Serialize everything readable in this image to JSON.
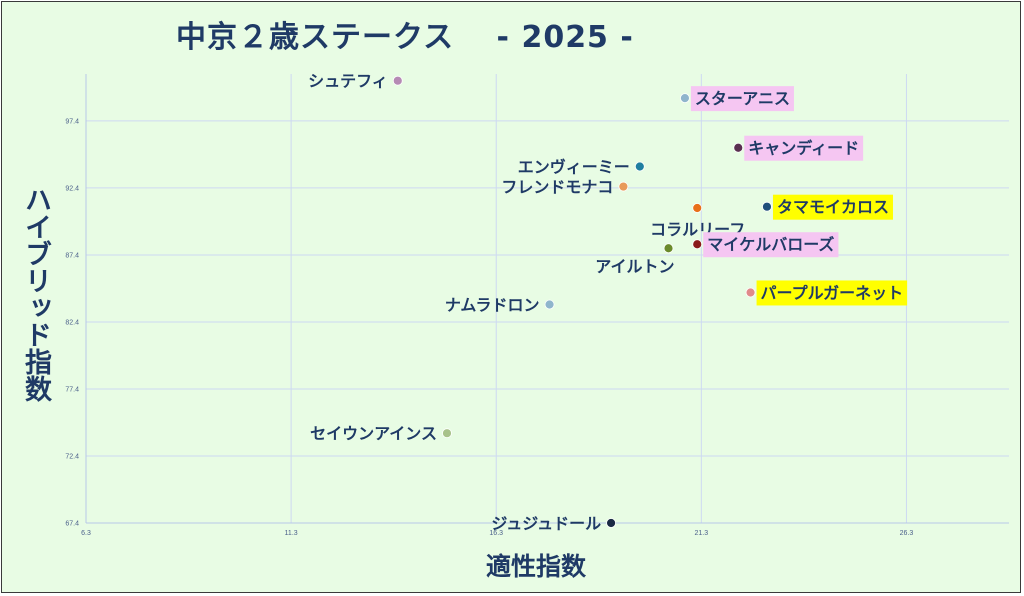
{
  "chart_data": {
    "type": "scatter",
    "title": "中京２歳ステークス　 - 2025 -",
    "xlabel": "適性指数",
    "ylabel": "ハイブリッド指数",
    "xlim": [
      6.3,
      28.8
    ],
    "ylim": [
      67.4,
      100.9
    ],
    "xticks": [
      "6.3",
      "11.3",
      "16.3",
      "21.3",
      "26.3"
    ],
    "yticks": [
      "67.4",
      "72.4",
      "77.4",
      "82.4",
      "87.4",
      "92.4",
      "97.4"
    ],
    "grid": true,
    "points": [
      {
        "name": "シュテフィ",
        "x": 13.9,
        "y": 100.4,
        "color": "#b58ab4",
        "label_side": "left",
        "highlight": ""
      },
      {
        "name": "スターアニス",
        "x": 20.9,
        "y": 99.1,
        "color": "#8fb5cc",
        "label_side": "right",
        "highlight": "#f5c6f2"
      },
      {
        "name": "キャンディード",
        "x": 22.2,
        "y": 95.4,
        "color": "#5a2f50",
        "label_side": "right",
        "highlight": "#f5c6f2"
      },
      {
        "name": "エンヴィーミー",
        "x": 19.8,
        "y": 94.0,
        "color": "#1f7fa0",
        "label_side": "left",
        "highlight": ""
      },
      {
        "name": "フレンドモナコ",
        "x": 19.4,
        "y": 92.5,
        "color": "#e89a5a",
        "label_side": "left",
        "highlight": ""
      },
      {
        "name": "タマモイカロス",
        "x": 22.9,
        "y": 91.0,
        "color": "#1f4f7a",
        "label_side": "right",
        "highlight": "#ffff00"
      },
      {
        "name": "コラルリーフ",
        "x": 21.2,
        "y": 90.9,
        "color": "#e8701a",
        "label_side": "below",
        "highlight": ""
      },
      {
        "name": "マイケルバローズ",
        "x": 21.2,
        "y": 88.2,
        "color": "#8a1a1a",
        "label_side": "right",
        "highlight": "#f5c6f2"
      },
      {
        "name": "アイルトン",
        "x": 20.5,
        "y": 87.9,
        "color": "#6a8a2a",
        "label_side": "belowleft",
        "highlight": ""
      },
      {
        "name": "パープルガーネット",
        "x": 22.5,
        "y": 84.6,
        "color": "#e08a8a",
        "label_side": "right",
        "highlight": "#ffff00"
      },
      {
        "name": "ナムラドロン",
        "x": 17.6,
        "y": 83.7,
        "color": "#8fb5cc",
        "label_side": "left",
        "highlight": ""
      },
      {
        "name": "セイウンアインス",
        "x": 15.1,
        "y": 74.1,
        "color": "#a8c28a",
        "label_side": "left",
        "highlight": ""
      },
      {
        "name": "ジュジュドール",
        "x": 19.1,
        "y": 67.4,
        "color": "#1a2a44",
        "label_side": "left",
        "highlight": ""
      }
    ]
  }
}
